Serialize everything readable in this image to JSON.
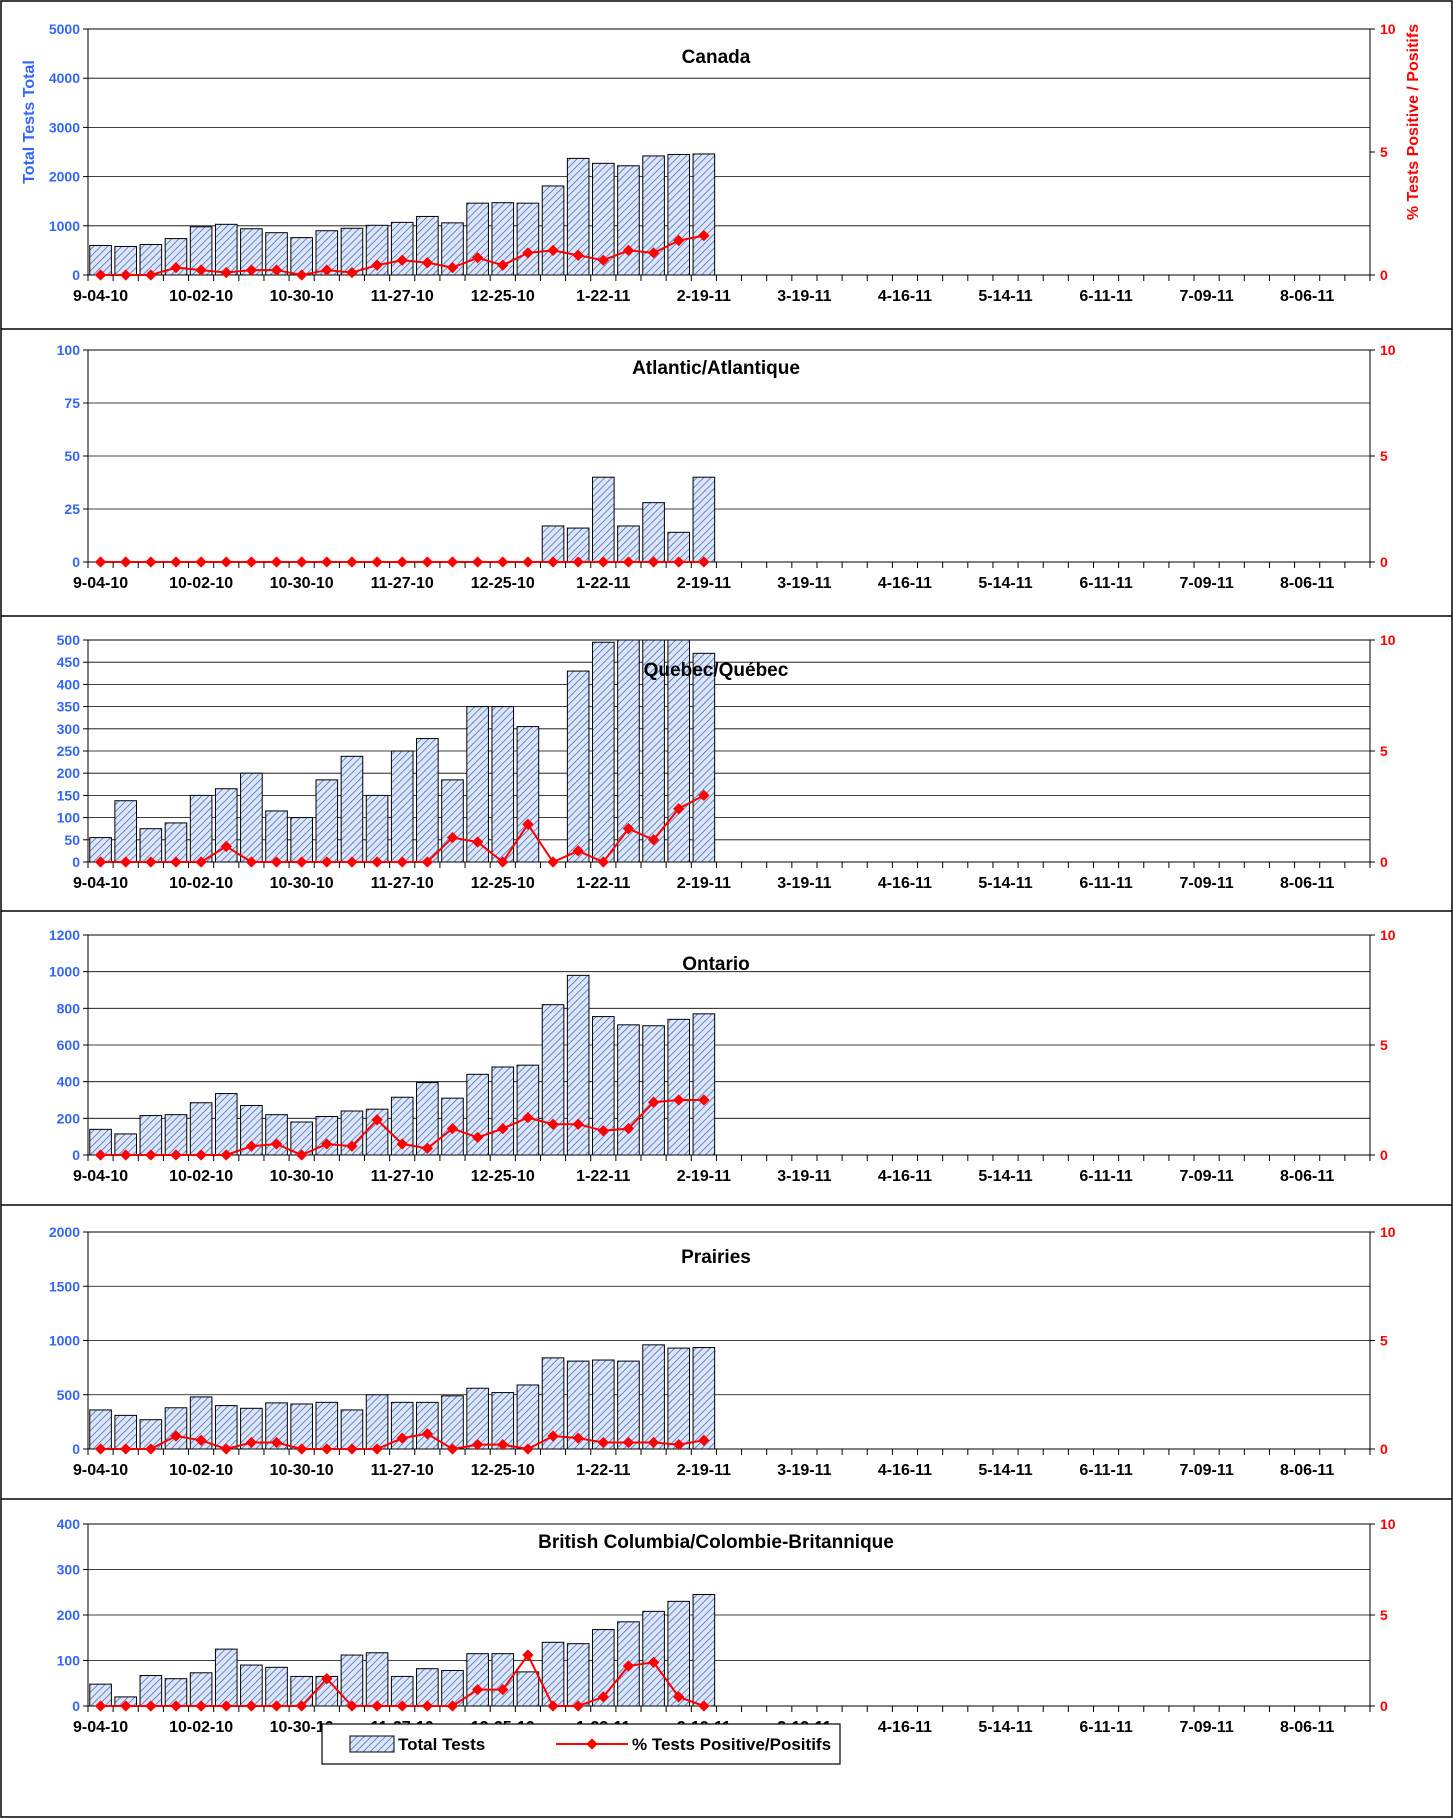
{
  "week_ticks": [
    "9-04-10",
    "9-11-10",
    "9-18-10",
    "9-25-10",
    "10-02-10",
    "10-09-10",
    "10-16-10",
    "10-23-10",
    "10-30-10",
    "11-06-10",
    "11-13-10",
    "11-20-10",
    "11-27-10",
    "12-04-10",
    "12-11-10",
    "12-18-10",
    "12-25-10",
    "1-01-11",
    "1-08-11",
    "1-15-11",
    "1-22-11",
    "1-29-11",
    "2-05-11",
    "2-12-11",
    "2-19-11",
    "2-26-11",
    "3-05-11",
    "3-12-11",
    "3-19-11",
    "3-26-11",
    "4-02-11",
    "4-09-11",
    "4-16-11",
    "4-23-11",
    "4-30-11",
    "5-07-11",
    "5-14-11",
    "5-21-11",
    "5-28-11",
    "6-04-11",
    "6-11-11",
    "6-18-11",
    "6-25-11",
    "7-02-11",
    "7-09-11",
    "7-16-11",
    "7-23-11",
    "7-30-11",
    "8-06-11",
    "8-13-11",
    "8-20-11"
  ],
  "x_tick_labels": [
    "9-04-10",
    "10-02-10",
    "10-30-10",
    "11-27-10",
    "12-25-10",
    "1-22-11",
    "2-19-11",
    "3-19-11",
    "4-16-11",
    "5-14-11",
    "6-11-11",
    "7-09-11",
    "8-06-11"
  ],
  "colors": {
    "bar_fill": "#dde6f7",
    "bar_hatch": "#4a6fc4",
    "bar_stroke": "#000000",
    "line": "#ff0000",
    "left_axis_text": "#3366ff",
    "right_axis_text": "#ff0000",
    "grid": "#000000"
  },
  "legend": {
    "bars": "Total Tests",
    "line": "% Tests Positive/Positifs"
  },
  "chart_data": [
    {
      "type": "bar",
      "title": "Canada",
      "ylabel": "Total Tests Total",
      "y2label": "% Tests Positive / Positifs",
      "ylim": [
        0,
        5000
      ],
      "yticks": [
        0,
        1000,
        2000,
        3000,
        4000,
        5000
      ],
      "y2lim": [
        0,
        10
      ],
      "y2ticks": [
        0,
        5,
        10
      ],
      "series": [
        {
          "values": [
            600,
            580,
            620,
            740,
            980,
            1030,
            940,
            860,
            760,
            900,
            950,
            1010,
            1070,
            1190,
            1060,
            1460,
            1470,
            1460,
            1810,
            2370,
            2270,
            2220,
            2420,
            2450,
            2460
          ]
        },
        {
          "values": [
            0,
            0,
            0,
            0.3,
            0.2,
            0.1,
            0.2,
            0.2,
            0,
            0.2,
            0.1,
            0.4,
            0.6,
            0.5,
            0.3,
            0.7,
            0.4,
            0.9,
            1.0,
            0.8,
            0.6,
            1.0,
            0.9,
            1.4,
            1.6
          ]
        }
      ]
    },
    {
      "type": "bar",
      "title": "Atlantic/Atlantique",
      "ylim": [
        0,
        100
      ],
      "yticks": [
        0,
        25,
        50,
        75,
        100
      ],
      "y2lim": [
        0,
        10
      ],
      "y2ticks": [
        0,
        5,
        10
      ],
      "series": [
        {
          "values": [
            0,
            0,
            0,
            0,
            0,
            0,
            0,
            0,
            0,
            0,
            0,
            0,
            0,
            0,
            0,
            0,
            0,
            0,
            17,
            16,
            40,
            17,
            28,
            14,
            40
          ]
        },
        {
          "values": [
            0,
            0,
            0,
            0,
            0,
            0,
            0,
            0,
            0,
            0,
            0,
            0,
            0,
            0,
            0,
            0,
            0,
            0,
            0,
            0,
            0,
            0,
            0,
            0,
            0
          ]
        }
      ]
    },
    {
      "type": "bar",
      "title": "Quebec/Québec",
      "ylim": [
        0,
        500
      ],
      "yticks": [
        0,
        50,
        100,
        150,
        200,
        250,
        300,
        350,
        400,
        450,
        500
      ],
      "y2lim": [
        0,
        10
      ],
      "y2ticks": [
        0,
        5,
        10
      ],
      "series": [
        {
          "values": [
            55,
            138,
            75,
            88,
            150,
            165,
            200,
            115,
            100,
            185,
            238,
            150,
            250,
            278,
            185,
            350,
            350,
            305,
            0,
            430,
            495,
            500,
            515,
            515,
            470
          ]
        },
        {
          "values": [
            0,
            0,
            0,
            0,
            0,
            0.7,
            0,
            0,
            0,
            0,
            0,
            0,
            0,
            0,
            1.1,
            0.9,
            0,
            1.7,
            0,
            0.5,
            0,
            1.5,
            1.0,
            2.4,
            3.0
          ]
        }
      ]
    },
    {
      "type": "bar",
      "title": "Ontario",
      "ylim": [
        0,
        1200
      ],
      "yticks": [
        0,
        200,
        400,
        600,
        800,
        1000,
        1200
      ],
      "y2lim": [
        0,
        10
      ],
      "y2ticks": [
        0,
        5,
        10
      ],
      "series": [
        {
          "values": [
            140,
            115,
            215,
            220,
            285,
            335,
            270,
            220,
            180,
            210,
            240,
            250,
            315,
            395,
            310,
            440,
            480,
            490,
            820,
            980,
            755,
            710,
            705,
            740,
            770
          ]
        },
        {
          "values": [
            0,
            0,
            0,
            0,
            0,
            0,
            0.4,
            0.5,
            0,
            0.5,
            0.4,
            1.6,
            0.5,
            0.3,
            1.2,
            0.8,
            1.2,
            1.7,
            1.4,
            1.4,
            1.1,
            1.2,
            2.4,
            2.5,
            2.5
          ]
        }
      ]
    },
    {
      "type": "bar",
      "title": "Prairies",
      "ylim": [
        0,
        2000
      ],
      "yticks": [
        0,
        500,
        1000,
        1500,
        2000
      ],
      "y2lim": [
        0,
        10
      ],
      "y2ticks": [
        0,
        5,
        10
      ],
      "series": [
        {
          "values": [
            360,
            310,
            270,
            380,
            480,
            400,
            375,
            425,
            415,
            430,
            360,
            500,
            430,
            430,
            490,
            560,
            520,
            590,
            840,
            810,
            820,
            810,
            960,
            930,
            935
          ]
        },
        {
          "values": [
            0,
            0,
            0,
            0.6,
            0.4,
            0,
            0.3,
            0.3,
            0,
            0,
            0,
            0,
            0.5,
            0.7,
            0,
            0.2,
            0.2,
            0,
            0.6,
            0.5,
            0.3,
            0.3,
            0.3,
            0.2,
            0.4
          ]
        }
      ]
    },
    {
      "type": "bar",
      "title": "British Columbia/Colombie-Britannique",
      "ylim": [
        0,
        400
      ],
      "yticks": [
        0,
        100,
        200,
        300,
        400
      ],
      "y2lim": [
        0,
        10
      ],
      "y2ticks": [
        0,
        5,
        10
      ],
      "series": [
        {
          "values": [
            48,
            20,
            67,
            60,
            73,
            125,
            90,
            85,
            65,
            65,
            112,
            117,
            65,
            82,
            78,
            115,
            115,
            75,
            140,
            137,
            168,
            185,
            208,
            230,
            245
          ]
        },
        {
          "values": [
            0,
            0,
            0,
            0,
            0,
            0,
            0,
            0,
            0,
            1.5,
            0,
            0,
            0,
            0,
            0,
            0.9,
            0.9,
            2.8,
            0,
            0,
            0.5,
            2.2,
            2.4,
            0.5,
            0
          ]
        }
      ]
    }
  ]
}
